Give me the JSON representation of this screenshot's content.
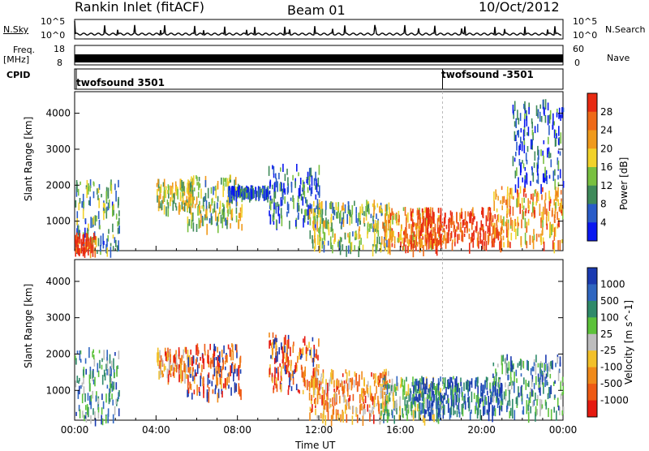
{
  "header": {
    "station": "Rankin Inlet (fitACF)",
    "beam": "Beam 01",
    "date": "10/Oct/2012"
  },
  "aux": {
    "nsky_label": "N.Sky",
    "nsky_ticks": [
      "10^5",
      "10^0"
    ],
    "nsearch_label": "N.Search",
    "freq_label_1": "Freq.",
    "freq_label_2": "[MHz]",
    "freq_ticks": [
      "18",
      "8"
    ],
    "nave_label": "Nave",
    "nave_ticks": [
      "60",
      "0"
    ],
    "cpid_label": "CPID",
    "cpid_marks": [
      {
        "label": "twofsound 3501",
        "time": 0
      },
      {
        "label": "twofsound -3501",
        "time": 18
      }
    ]
  },
  "x_axis": {
    "label": "Time UT",
    "ticks": [
      "00:00",
      "04:00",
      "08:00",
      "12:00",
      "16:00",
      "20:00",
      "00:00"
    ]
  },
  "chart_data": [
    {
      "type": "heatmap",
      "name": "power",
      "xlabel": "Time UT",
      "ylabel": "Slant Range [km]",
      "xlim": [
        0,
        24
      ],
      "ylim": [
        180,
        4600
      ],
      "y_ticks": [
        1000,
        2000,
        3000,
        4000
      ],
      "colorbar_label": "Power [dB]",
      "colorbar_ticks": [
        "4",
        "8",
        "12",
        "16",
        "20",
        "24",
        "28"
      ],
      "colorbar_colors": [
        "#0a18f0",
        "#2a5cc8",
        "#3f8a5a",
        "#79c040",
        "#f2d22a",
        "#f09a1c",
        "#ef6a18",
        "#e82a12"
      ],
      "regions": [
        {
          "t0": 0.0,
          "t1": 2.2,
          "r0": 200,
          "r1": 2200,
          "level": 0.35
        },
        {
          "t0": 0.0,
          "t1": 1.0,
          "r0": 200,
          "r1": 700,
          "level": 0.95
        },
        {
          "t0": 4.0,
          "t1": 5.8,
          "r0": 1400,
          "r1": 2200,
          "level": 0.5
        },
        {
          "t0": 5.5,
          "t1": 8.2,
          "r0": 900,
          "r1": 2300,
          "level": 0.45
        },
        {
          "t0": 7.5,
          "t1": 9.5,
          "r0": 1800,
          "r1": 2000,
          "level": 0.2
        },
        {
          "t0": 9.5,
          "t1": 12.0,
          "r0": 1000,
          "r1": 2600,
          "level": 0.2
        },
        {
          "t0": 11.5,
          "t1": 15.5,
          "r0": 300,
          "r1": 1600,
          "level": 0.45
        },
        {
          "t0": 15.0,
          "t1": 18.0,
          "r0": 300,
          "r1": 1400,
          "level": 0.7
        },
        {
          "t0": 16.5,
          "t1": 21.0,
          "r0": 400,
          "r1": 1400,
          "level": 0.95
        },
        {
          "t0": 20.5,
          "t1": 24.0,
          "r0": 400,
          "r1": 2000,
          "level": 0.7
        },
        {
          "t0": 21.5,
          "t1": 24.0,
          "r0": 2000,
          "r1": 4400,
          "level": 0.2
        }
      ]
    },
    {
      "type": "heatmap",
      "name": "velocity",
      "xlabel": "Time UT",
      "ylabel": "Slant Range [km]",
      "xlim": [
        0,
        24
      ],
      "ylim": [
        180,
        4600
      ],
      "y_ticks": [
        1000,
        2000,
        3000,
        4000
      ],
      "colorbar_label": "Velocity [m s^-1]",
      "colorbar_ticks": [
        "1000",
        "500",
        "100",
        "25",
        "-25",
        "-100",
        "-500",
        "-1000"
      ],
      "colorbar_colors": [
        "#1a3ab0",
        "#2f66c0",
        "#2f8a6a",
        "#5cc23a",
        "#bdbdbd",
        "#f2c02a",
        "#f08a1a",
        "#ee5a14",
        "#e61a10"
      ],
      "regions": [
        {
          "t0": 0.0,
          "t1": 2.2,
          "r0": 200,
          "r1": 2200,
          "level": 0.7
        },
        {
          "t0": 4.0,
          "t1": 5.8,
          "r0": 1400,
          "r1": 2200,
          "level": 0.3
        },
        {
          "t0": 5.5,
          "t1": 8.2,
          "r0": 900,
          "r1": 2300,
          "level": 0.1
        },
        {
          "t0": 9.5,
          "t1": 12.0,
          "r0": 1000,
          "r1": 2600,
          "level": 0.15
        },
        {
          "t0": 11.5,
          "t1": 15.5,
          "r0": 300,
          "r1": 1600,
          "level": 0.3
        },
        {
          "t0": 15.0,
          "t1": 18.0,
          "r0": 300,
          "r1": 1400,
          "level": 0.6
        },
        {
          "t0": 16.5,
          "t1": 21.0,
          "r0": 400,
          "r1": 1400,
          "level": 0.85
        },
        {
          "t0": 20.5,
          "t1": 24.0,
          "r0": 400,
          "r1": 2000,
          "level": 0.7
        }
      ]
    }
  ]
}
